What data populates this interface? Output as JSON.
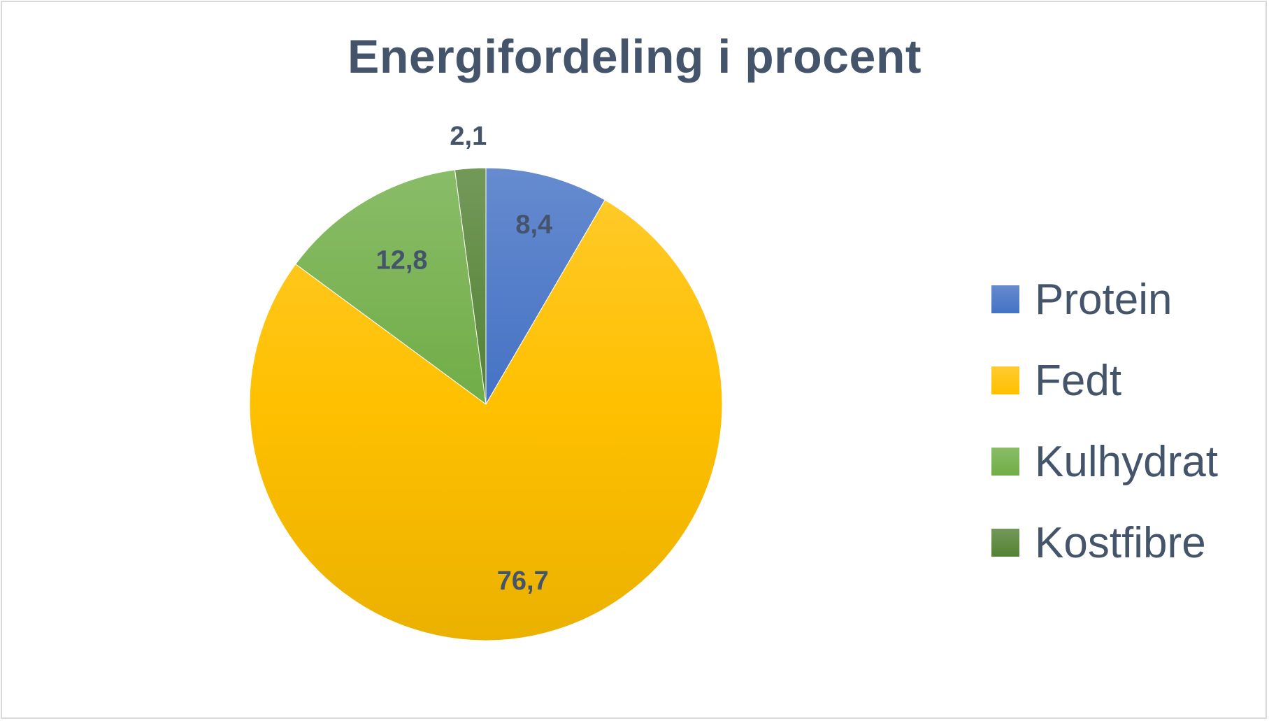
{
  "chart_data": {
    "type": "pie",
    "title": "Energifordeling i procent",
    "categories": [
      "Protein",
      "Fedt",
      "Kulhydrat",
      "Kostfibre"
    ],
    "values": [
      8.4,
      76.7,
      12.8,
      2.1
    ],
    "labels": [
      "8,4",
      "76,7",
      "12,8",
      "2,1"
    ],
    "colors": [
      "#4472c4",
      "#ffc000",
      "#70ad47",
      "#548235"
    ],
    "legend_position": "right",
    "start_angle_deg": 0,
    "direction": "clockwise"
  }
}
